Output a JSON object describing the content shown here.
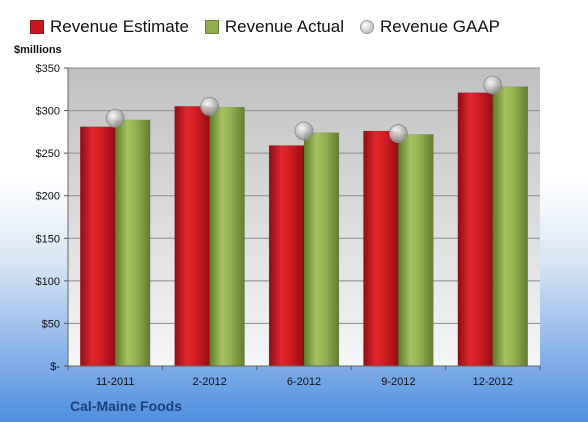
{
  "chart_data": {
    "type": "bar",
    "title": "Cal-Maine Foods",
    "ylabel": "$millions",
    "xlabel": "",
    "categories": [
      "11-2011",
      "2-2012",
      "6-2012",
      "9-2012",
      "12-2012"
    ],
    "series": [
      {
        "name": "Revenue Estimate",
        "type": "bar",
        "color": "#c8181e",
        "values": [
          281,
          305,
          259,
          276,
          321
        ]
      },
      {
        "name": "Revenue Actual",
        "type": "bar",
        "color": "#8fac4f",
        "values": [
          289,
          304,
          274,
          272,
          328
        ]
      },
      {
        "name": "Revenue GAAP",
        "type": "marker",
        "color": "#b0b0b0",
        "values": [
          291,
          305,
          276,
          273,
          330
        ]
      }
    ],
    "ylim": [
      0,
      350
    ],
    "yticks": [
      0,
      50,
      100,
      150,
      200,
      250,
      300,
      350
    ],
    "ytick_labels": [
      "$-",
      "$50",
      "$100",
      "$150",
      "$200",
      "$250",
      "$300",
      "$350"
    ],
    "grid": true,
    "legend_position": "top"
  }
}
